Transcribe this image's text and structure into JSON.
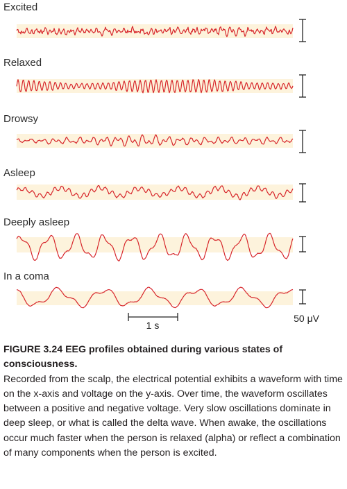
{
  "figure": {
    "states": [
      {
        "label": "Excited"
      },
      {
        "label": "Relaxed"
      },
      {
        "label": "Drowsy"
      },
      {
        "label": "Asleep"
      },
      {
        "label": "Deeply asleep"
      },
      {
        "label": "In a coma"
      }
    ],
    "time_scale_label": "1 s",
    "voltage_scale_label": "50 μV",
    "colors": {
      "trace": "#d7262b",
      "band": "#fdf3dc",
      "scale": "#222222"
    }
  },
  "caption": {
    "title": "FIGURE 3.24 EEG profiles obtained during various states of consciousness.",
    "body": "Recorded from the scalp, the electrical potential exhibits a waveform with time on the x-axis and voltage on the y-axis. Over time, the waveform oscillates between a positive and negative voltage. Very slow oscillations dominate in deep sleep, or what is called the delta wave. When awake, the oscillations occur much faster when the person is relaxed (alpha) or reflect a combination of many components when the person is excited."
  }
}
